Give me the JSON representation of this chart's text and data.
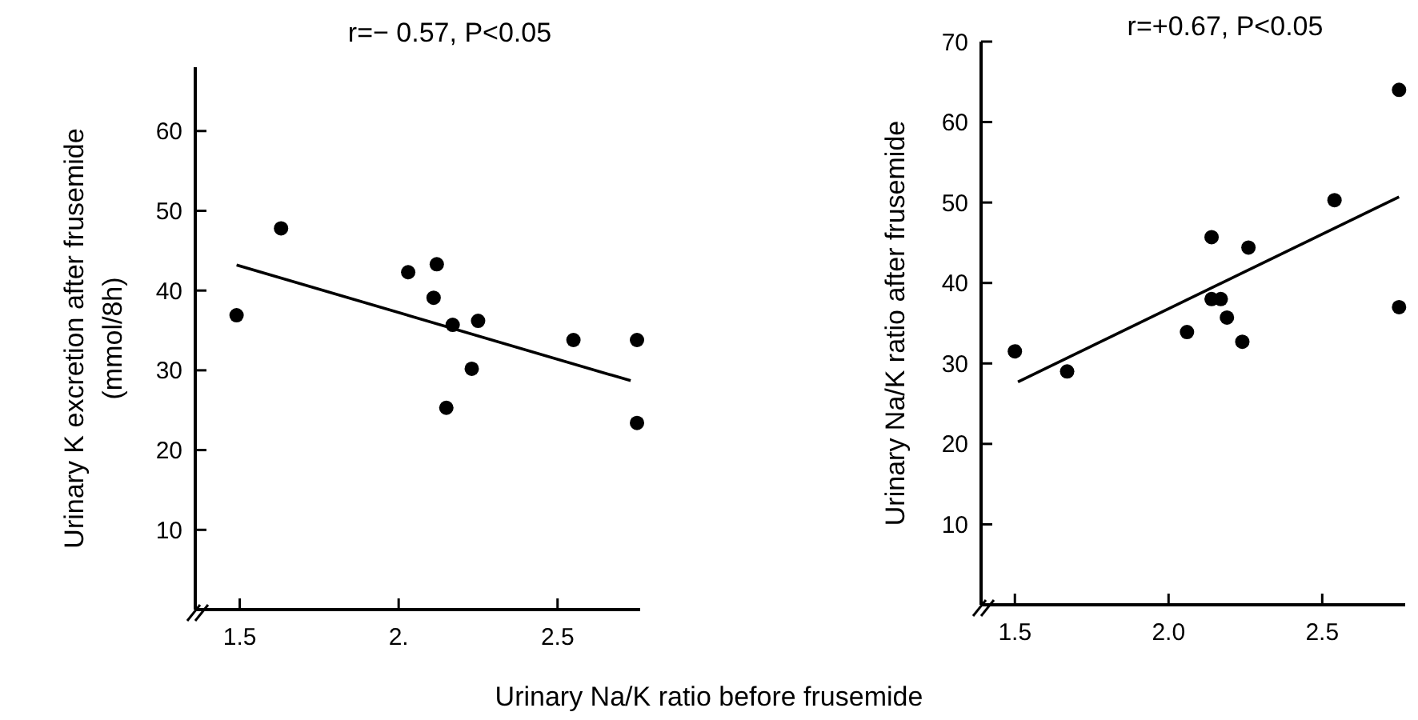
{
  "chart_data": [
    {
      "type": "scatter",
      "title": "r=− 0.57,  P<0.05",
      "ylabel": "Urinary K excretion after frusemide\n(mmol/8h)",
      "xlabel": "Urinary Na/K ratio before frusemide",
      "grid": false,
      "xlim": [
        1.36,
        2.76
      ],
      "xticks": [
        {
          "value": 1.5,
          "label": "1.5"
        },
        {
          "value": 2,
          "label": "2."
        },
        {
          "value": 2.5,
          "label": "2.5"
        }
      ],
      "ylim": [
        0,
        68
      ],
      "yticks": [
        10,
        20,
        30,
        40,
        50,
        60
      ],
      "series": [
        {
          "type": "scatter",
          "marker": "circle",
          "color": "#000000",
          "x": [
            1.49,
            1.63,
            2.03,
            2.12,
            2.11,
            2.17,
            2.25,
            2.23,
            2.15,
            2.55,
            2.75,
            2.75
          ],
          "values": [
            36.9,
            47.8,
            42.3,
            43.3,
            39.1,
            35.7,
            36.2,
            30.2,
            25.3,
            33.8,
            33.8,
            23.4
          ]
        },
        {
          "type": "line",
          "marker": "none",
          "color": "#000000",
          "x": [
            1.49,
            2.73
          ],
          "values": [
            43.2,
            28.7
          ]
        }
      ]
    },
    {
      "type": "scatter",
      "title": "r=+0.67,  P<0.05",
      "ylabel": "Urinary Na/K ratio after frusemide",
      "grid": false,
      "xlim": [
        1.39,
        2.77
      ],
      "xticks": [
        {
          "value": 1.5,
          "label": "1.5"
        },
        {
          "value": 2,
          "label": "2.0"
        },
        {
          "value": 2.5,
          "label": "2.5"
        }
      ],
      "ylim": [
        0,
        70
      ],
      "yticks": [
        10,
        20,
        30,
        40,
        50,
        60,
        70
      ],
      "series": [
        {
          "type": "scatter",
          "marker": "circle",
          "color": "#000000",
          "x": [
            1.5,
            1.67,
            2.06,
            2.14,
            2.14,
            2.17,
            2.19,
            2.24,
            2.26,
            2.54,
            2.75,
            2.75
          ],
          "values": [
            31.5,
            29.0,
            33.9,
            45.7,
            38.0,
            38.0,
            35.7,
            32.7,
            44.4,
            50.3,
            64.0,
            37.0
          ]
        },
        {
          "type": "line",
          "marker": "none",
          "color": "#000000",
          "x": [
            1.51,
            2.75
          ],
          "values": [
            27.7,
            50.7
          ]
        }
      ]
    }
  ]
}
